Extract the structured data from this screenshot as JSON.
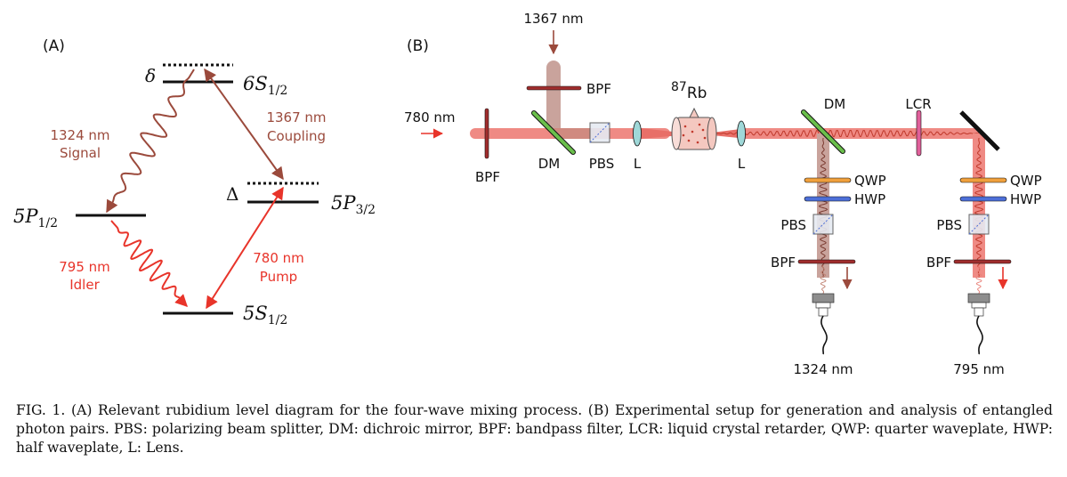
{
  "panel_a": {
    "label": "(A)",
    "delta": "δ",
    "Delta": "Δ",
    "levels": {
      "s6": "6S",
      "s6_sub": "1/2",
      "p32": "5P",
      "p32_sub": "3/2",
      "p12": "5P",
      "p12_sub": "1/2",
      "s5": "5S",
      "s5_sub": "1/2"
    },
    "signal": {
      "wavelength": "1324 nm",
      "name": "Signal"
    },
    "coupling": {
      "wavelength": "1367 nm",
      "name": "Coupling"
    },
    "idler": {
      "wavelength": "795 nm",
      "name": "Idler"
    },
    "pump": {
      "wavelength": "780 nm",
      "name": "Pump"
    }
  },
  "panel_b": {
    "label": "(B)",
    "input_780": "780 nm",
    "input_1367": "1367 nm",
    "bpf_top": "BPF",
    "bpf_left": "BPF",
    "dm_left": "DM",
    "pbs_main": "PBS",
    "lens1": "L",
    "cell_sup": "87",
    "cell_el": "Rb",
    "lens2": "L",
    "dm_right": "DM",
    "lcr": "LCR",
    "qwp1": "QWP",
    "hwp1": "HWP",
    "pbs1": "PBS",
    "bpf1": "BPF",
    "out1": "1324 nm",
    "qwp2": "QWP",
    "hwp2": "HWP",
    "pbs2": "PBS",
    "bpf2": "BPF",
    "out2": "795 nm"
  },
  "caption": "FIG. 1. (A) Relevant rubidium level diagram for the four-wave mixing process. (B) Experimental setup for generation and analysis of entangled photon pairs. PBS: polarizing beam splitter, DM: dichroic mirror, BPF: bandpass filter, LCR: liquid crystal retarder, QWP: quarter waveplate, HWP: half waveplate, L: Lens.",
  "colors": {
    "signal_brown": "#9b4a3c",
    "idler_red": "#e8342a",
    "beam_red": "#ef8a84",
    "coupling_beam": "#c9a39c",
    "dm_green": "#6abf4b",
    "wp_orange": "#f0a03c",
    "wp_blue": "#4d6fd8",
    "lcr_pink": "#e0609a",
    "lens_teal": "#9fd8d8"
  }
}
